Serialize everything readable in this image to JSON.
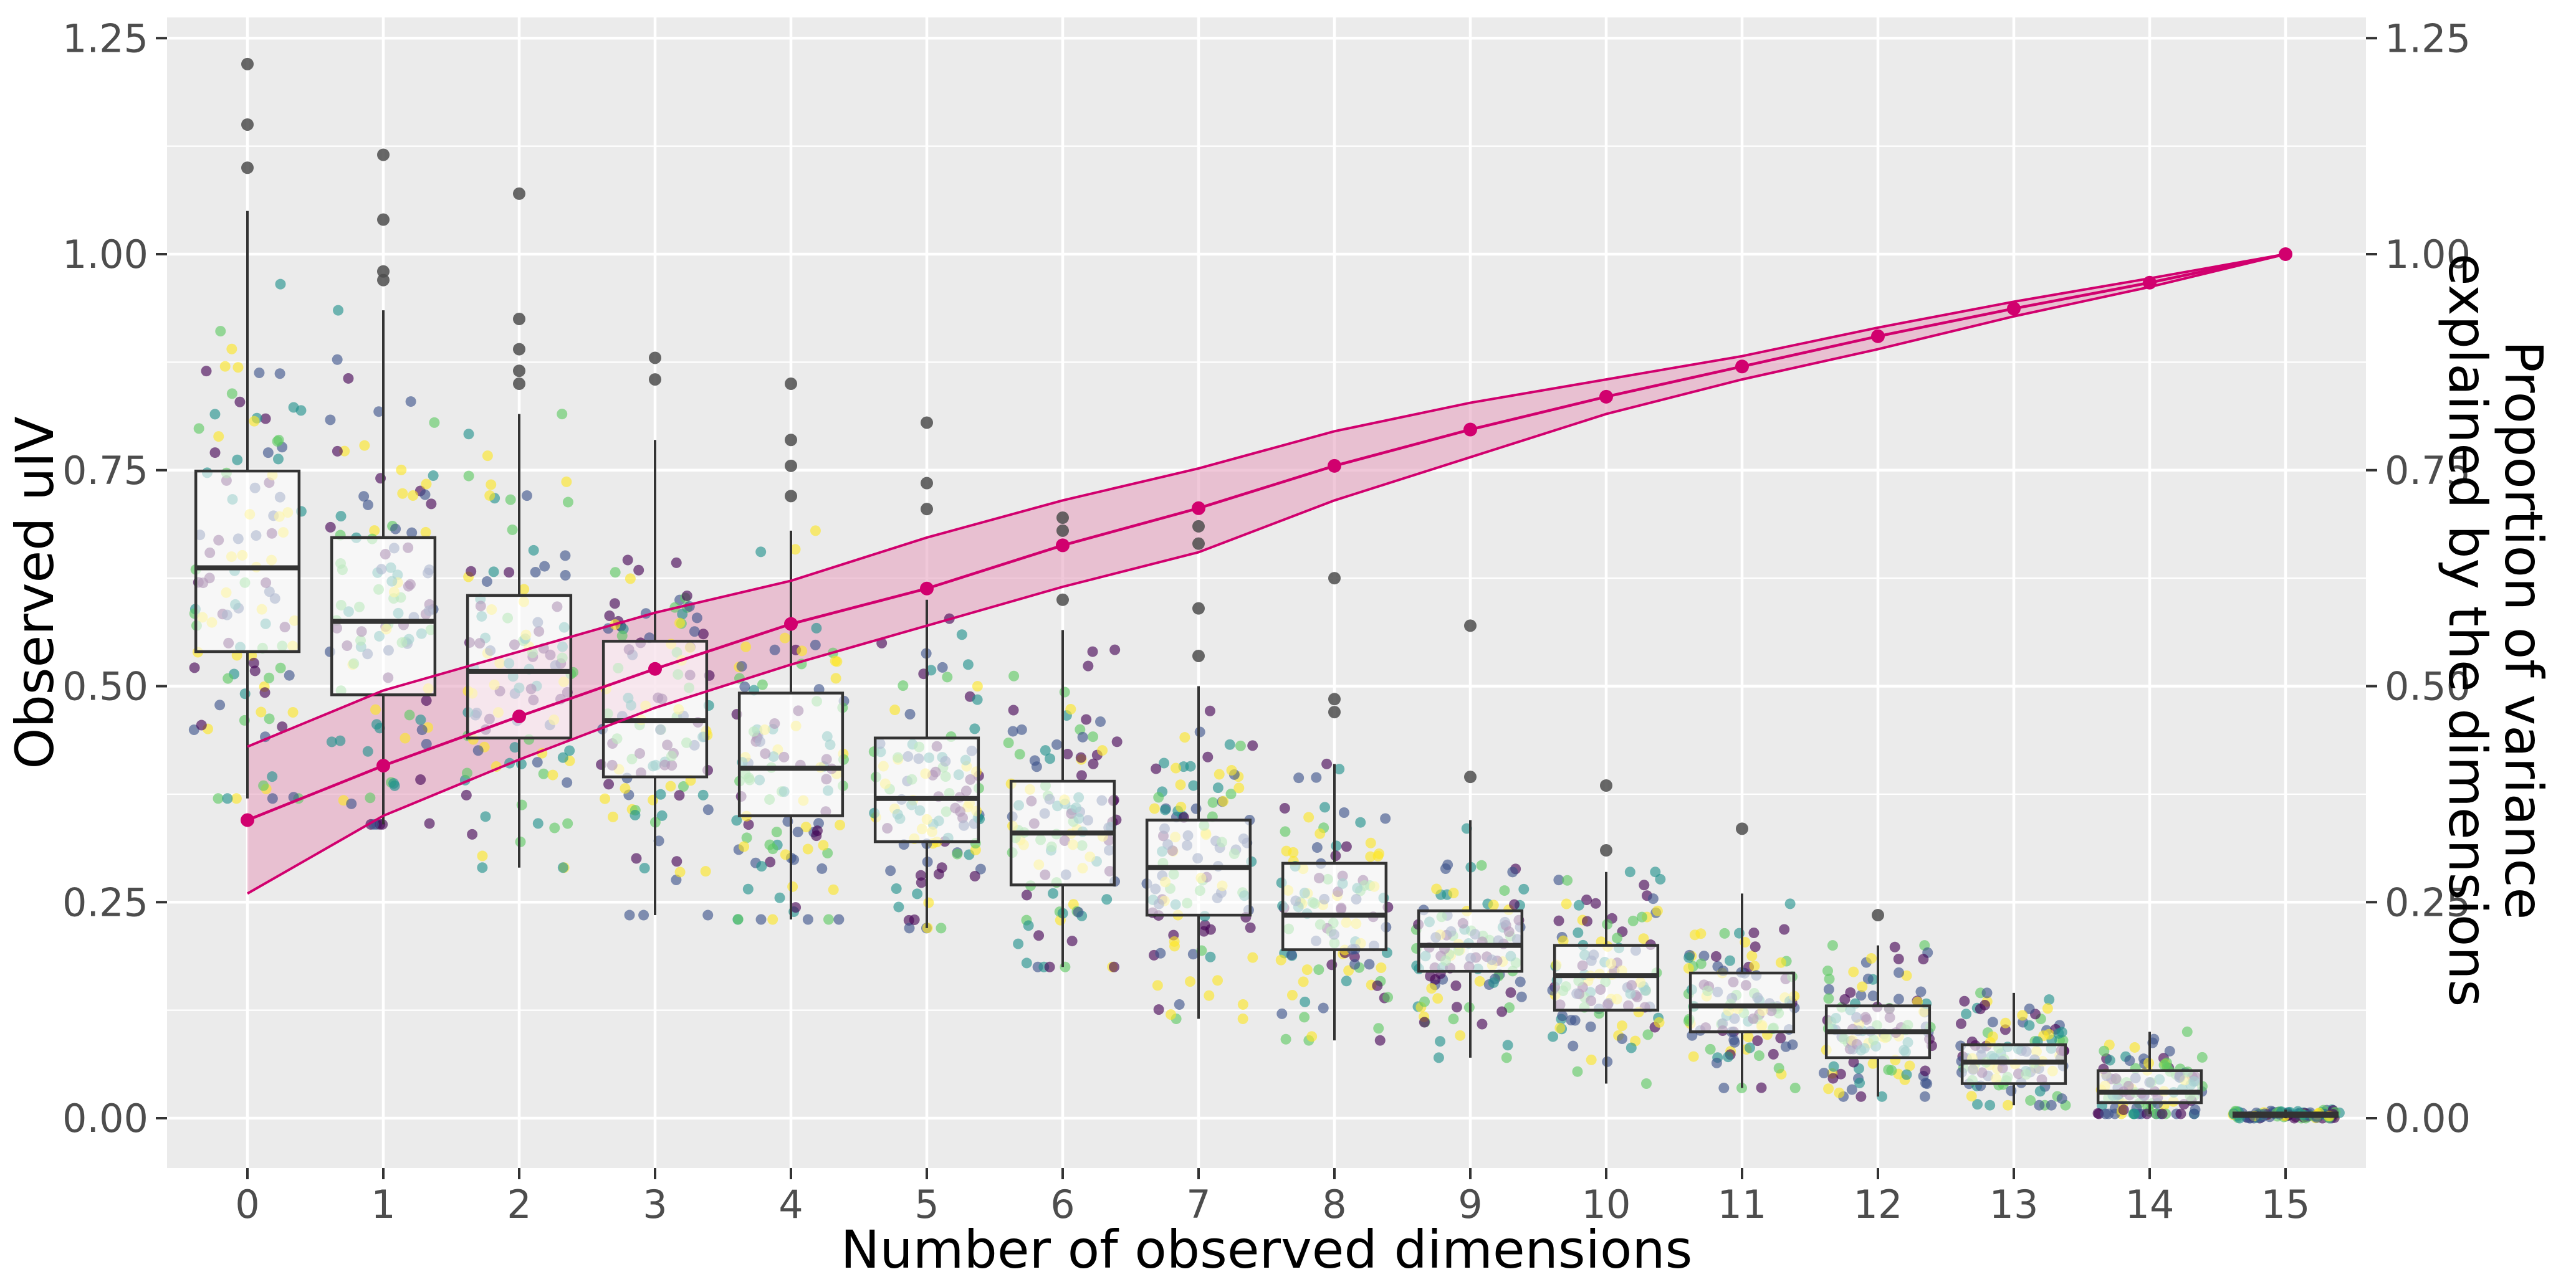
{
  "chart_data": {
    "type": "box",
    "xlabel": "Number of observed dimensions",
    "ylabel": "Observed uIV",
    "y2label_lines": [
      "Proportion of variance",
      "explained by the dimensions"
    ],
    "categories": [
      "0",
      "1",
      "2",
      "3",
      "4",
      "5",
      "6",
      "7",
      "8",
      "9",
      "10",
      "11",
      "12",
      "13",
      "14",
      "15"
    ],
    "ylim": [
      -0.055,
      1.28
    ],
    "y_ticks": [
      "0.00",
      "0.25",
      "0.50",
      "0.75",
      "1.00",
      "1.25"
    ],
    "y2_ticks": [
      "0.00",
      "0.25",
      "0.50",
      "0.75",
      "1.00",
      "1.25"
    ],
    "grid": true,
    "colors": {
      "panel": "#ebebeb",
      "gridline": "#ffffff",
      "box_fill": "#ffffff",
      "box_stroke": "#333333",
      "outlier": "#4d4d4d",
      "line": "#d1006e",
      "ribbon": "#e6a3c0",
      "jitter_palette": [
        "#440154",
        "#3b528b",
        "#21918c",
        "#5ec962",
        "#fde725"
      ]
    },
    "boxes": [
      {
        "x": 0,
        "q1": 0.54,
        "median": 0.637,
        "q3": 0.749,
        "whisker_low": 0.37,
        "whisker_high": 1.05,
        "outliers": [
          1.22,
          1.15,
          1.1
        ]
      },
      {
        "x": 1,
        "q1": 0.49,
        "median": 0.575,
        "q3": 0.672,
        "whisker_low": 0.34,
        "whisker_high": 0.935,
        "outliers": [
          1.115,
          1.04,
          0.98,
          0.97
        ]
      },
      {
        "x": 2,
        "q1": 0.44,
        "median": 0.517,
        "q3": 0.605,
        "whisker_low": 0.29,
        "whisker_high": 0.815,
        "outliers": [
          1.07,
          0.925,
          0.89,
          0.865,
          0.85
        ]
      },
      {
        "x": 3,
        "q1": 0.395,
        "median": 0.46,
        "q3": 0.552,
        "whisker_low": 0.235,
        "whisker_high": 0.785,
        "outliers": [
          0.88,
          0.855
        ]
      },
      {
        "x": 4,
        "q1": 0.35,
        "median": 0.405,
        "q3": 0.492,
        "whisker_low": 0.23,
        "whisker_high": 0.68,
        "outliers": [
          0.85,
          0.785,
          0.755,
          0.72
        ]
      },
      {
        "x": 5,
        "q1": 0.32,
        "median": 0.37,
        "q3": 0.44,
        "whisker_low": 0.22,
        "whisker_high": 0.6,
        "outliers": [
          0.805,
          0.735,
          0.705
        ]
      },
      {
        "x": 6,
        "q1": 0.27,
        "median": 0.33,
        "q3": 0.39,
        "whisker_low": 0.175,
        "whisker_high": 0.565,
        "outliers": [
          0.695,
          0.68,
          0.6
        ]
      },
      {
        "x": 7,
        "q1": 0.235,
        "median": 0.29,
        "q3": 0.345,
        "whisker_low": 0.115,
        "whisker_high": 0.5,
        "outliers": [
          0.685,
          0.665,
          0.59,
          0.535
        ]
      },
      {
        "x": 8,
        "q1": 0.195,
        "median": 0.235,
        "q3": 0.295,
        "whisker_low": 0.09,
        "whisker_high": 0.41,
        "outliers": [
          0.625,
          0.485,
          0.47
        ]
      },
      {
        "x": 9,
        "q1": 0.17,
        "median": 0.2,
        "q3": 0.24,
        "whisker_low": 0.07,
        "whisker_high": 0.345,
        "outliers": [
          0.57,
          0.395
        ]
      },
      {
        "x": 10,
        "q1": 0.125,
        "median": 0.165,
        "q3": 0.2,
        "whisker_low": 0.04,
        "whisker_high": 0.285,
        "outliers": [
          0.385,
          0.31
        ]
      },
      {
        "x": 11,
        "q1": 0.1,
        "median": 0.13,
        "q3": 0.168,
        "whisker_low": 0.035,
        "whisker_high": 0.26,
        "outliers": [
          0.335
        ]
      },
      {
        "x": 12,
        "q1": 0.07,
        "median": 0.1,
        "q3": 0.13,
        "whisker_low": 0.025,
        "whisker_high": 0.2,
        "outliers": [
          0.235
        ]
      },
      {
        "x": 13,
        "q1": 0.04,
        "median": 0.065,
        "q3": 0.085,
        "whisker_low": 0.015,
        "whisker_high": 0.145,
        "outliers": []
      },
      {
        "x": 14,
        "q1": 0.018,
        "median": 0.03,
        "q3": 0.055,
        "whisker_low": 0.005,
        "whisker_high": 0.1,
        "outliers": []
      },
      {
        "x": 15,
        "q1": 0.002,
        "median": 0.004,
        "q3": 0.006,
        "whisker_low": 0.0,
        "whisker_high": 0.01,
        "outliers": []
      }
    ],
    "variance_line": {
      "x": [
        0,
        1,
        2,
        3,
        4,
        5,
        6,
        7,
        8,
        9,
        10,
        11,
        12,
        13,
        14,
        15
      ],
      "mean": [
        0.345,
        0.408,
        0.465,
        0.52,
        0.572,
        0.613,
        0.663,
        0.706,
        0.755,
        0.797,
        0.835,
        0.87,
        0.905,
        0.937,
        0.967,
        1.0
      ],
      "lower": [
        0.26,
        0.35,
        0.415,
        0.475,
        0.525,
        0.57,
        0.615,
        0.655,
        0.715,
        0.765,
        0.815,
        0.855,
        0.89,
        0.928,
        0.962,
        1.0
      ],
      "upper": [
        0.43,
        0.495,
        0.54,
        0.585,
        0.622,
        0.672,
        0.715,
        0.752,
        0.795,
        0.828,
        0.855,
        0.882,
        0.915,
        0.945,
        0.972,
        1.0
      ]
    }
  }
}
